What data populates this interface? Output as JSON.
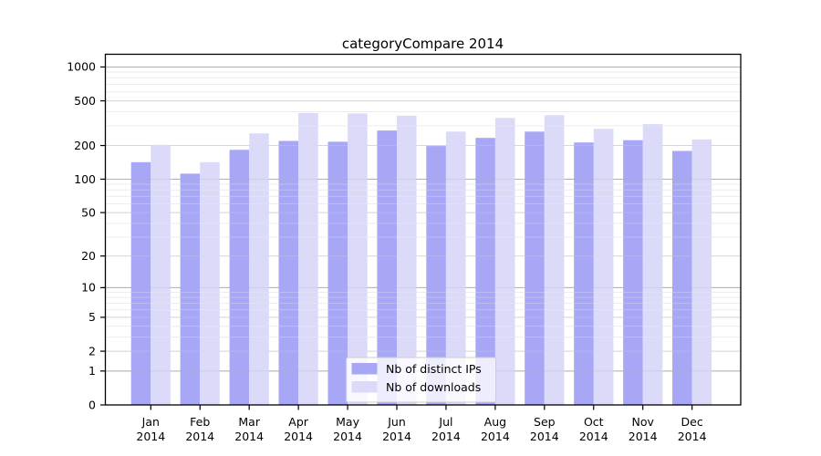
{
  "chart_data": {
    "type": "bar",
    "title": "categoryCompare 2014",
    "categories": [
      "Jan",
      "Feb",
      "Mar",
      "Apr",
      "May",
      "Jun",
      "Jul",
      "Aug",
      "Sep",
      "Oct",
      "Nov",
      "Dec"
    ],
    "year_label": "2014",
    "series": [
      {
        "name": "Nb of distinct IPs",
        "color": "#a7a7f6",
        "values": [
          142,
          112,
          183,
          220,
          216,
          272,
          198,
          234,
          266,
          213,
          223,
          179
        ]
      },
      {
        "name": "Nb of downloads",
        "color": "#dbdbf9",
        "values": [
          203,
          142,
          257,
          390,
          386,
          369,
          266,
          352,
          373,
          282,
          310,
          227
        ]
      }
    ],
    "yscale": "log1p",
    "yticks": [
      0,
      1,
      2,
      5,
      10,
      20,
      50,
      100,
      200,
      500,
      1000
    ],
    "ylim": [
      0,
      1300
    ],
    "grid": true,
    "legend_position": "lower center",
    "colors": {
      "grid_major": "#b1b1b1",
      "grid_mid": "#d7d7d7",
      "grid_minor": "#ededed",
      "axis": "#000000",
      "legend_border": "#cccccc"
    }
  }
}
